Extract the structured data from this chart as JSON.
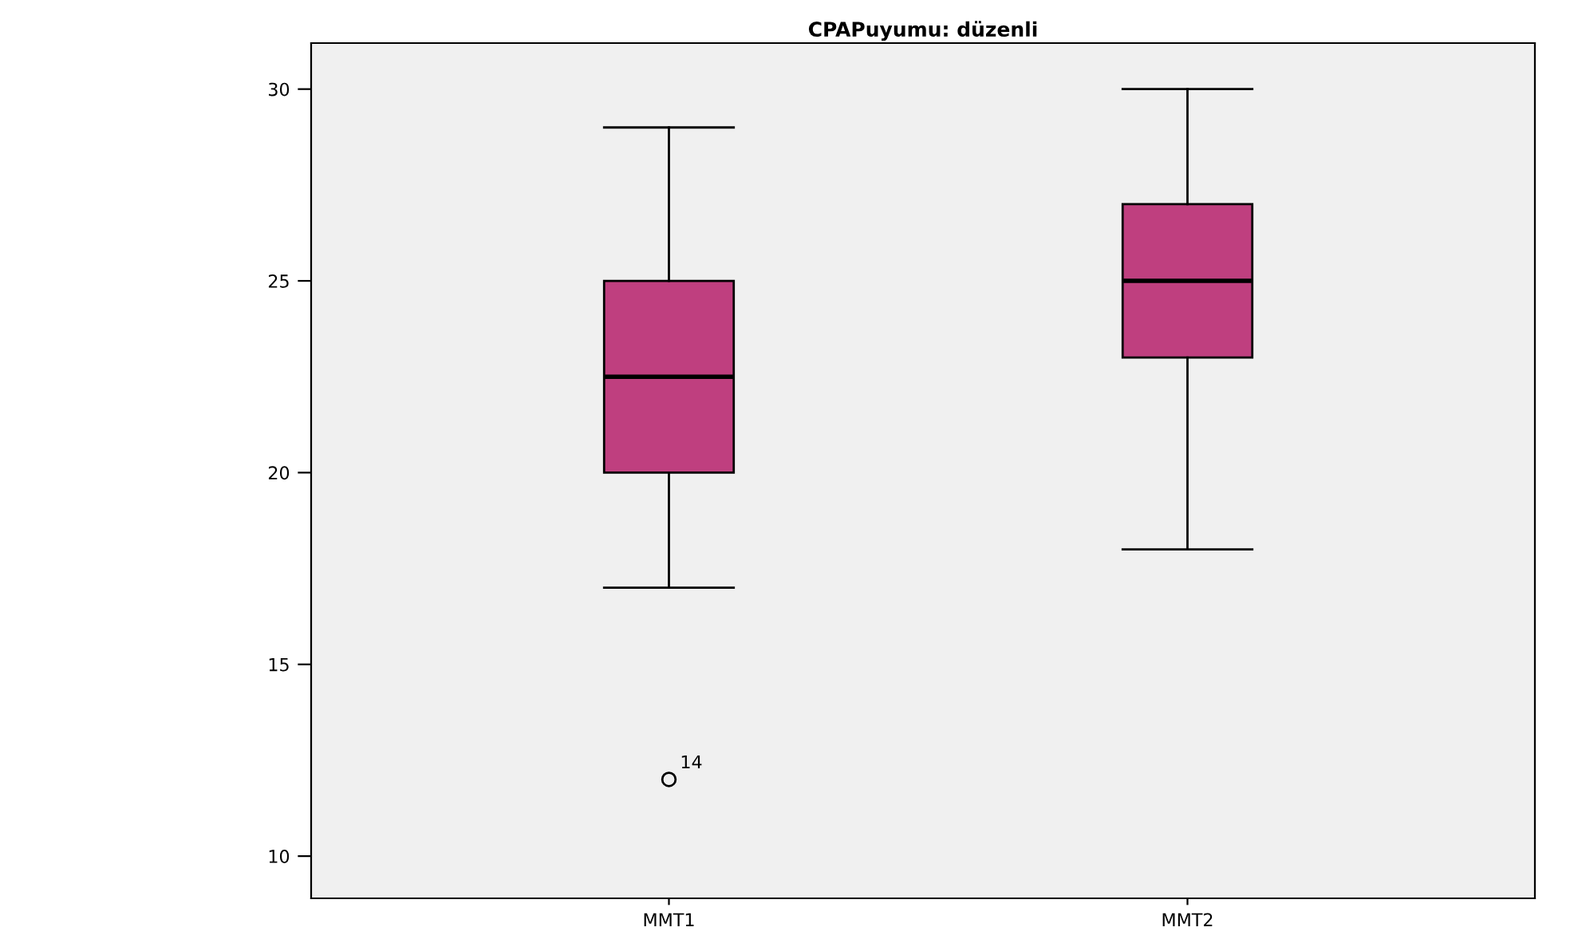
{
  "chart_data": {
    "type": "box",
    "title": "CPAPuyumu: düzenli",
    "categories": [
      "MMT1",
      "MMT2"
    ],
    "series": [
      {
        "color": "#bf3f7f",
        "boxes": [
          {
            "low": 17,
            "q1": 20,
            "median": 22.5,
            "q3": 25,
            "high": 29,
            "outliers": [
              12
            ]
          },
          {
            "low": 18,
            "q1": 23,
            "median": 25,
            "q3": 27,
            "high": 30
          }
        ]
      }
    ],
    "ylim": [
      8.9,
      31.2
    ],
    "yticks": [
      10,
      15,
      20,
      25,
      30
    ],
    "annotations": [
      "14"
    ],
    "grid": false
  }
}
